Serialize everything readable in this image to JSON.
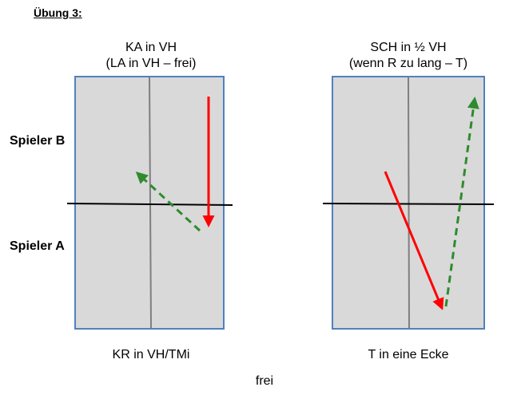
{
  "heading": "Übung 3:",
  "players": {
    "b": "Spieler B",
    "a": "Spieler A"
  },
  "tables": [
    {
      "title_line1": "KA in VH",
      "title_line2": "(LA in VH – frei)",
      "caption": "KR in VH/TMi"
    },
    {
      "title_line1": "SCH in ½ VH",
      "title_line2": "(wenn R zu lang – T)",
      "caption": "T in eine Ecke"
    }
  ],
  "footer": "frei",
  "colors": {
    "table_fill": "#d9d9d9",
    "table_border": "#4f81bd",
    "center_line": "#7f7f7f",
    "net": "#000000",
    "solid_arrow": "#ff0000",
    "dashed_arrow": "#2e8b2e"
  }
}
